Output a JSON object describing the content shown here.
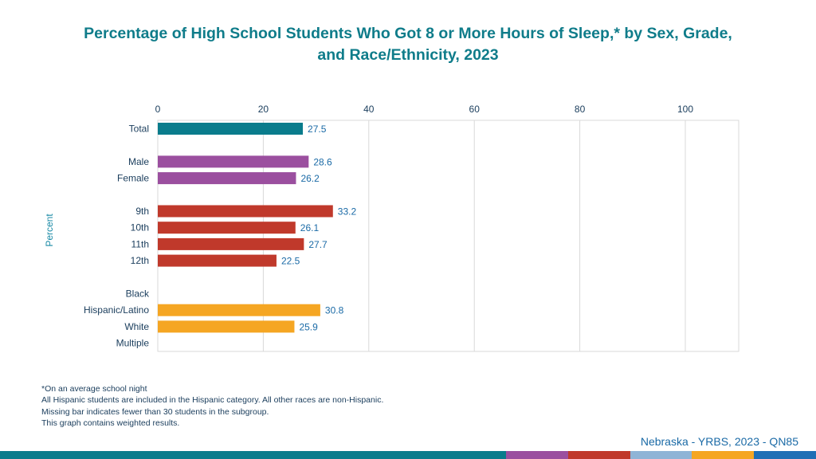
{
  "title_line1": "Percentage of High School Students Who Got 8 or More Hours of Sleep,* by Sex, Grade,",
  "title_line2": "and Race/Ethnicity, 2023",
  "footnotes": [
    "*On an average school night",
    "All Hispanic students are included in the Hispanic category.  All other races are non-Hispanic.",
    "Missing bar indicates fewer than 30 students in the subgroup.",
    "This graph contains weighted results."
  ],
  "source": "Nebraska - YRBS, 2023 - QN85",
  "colors": {
    "title": "#0f7c8a",
    "axis_text": "#1a3d5c",
    "value_label": "#1a6aa6",
    "total": "#0a7c8c",
    "sex": "#9b4f9f",
    "grade": "#c0392b",
    "race": "#f5a623"
  },
  "bottom_band": [
    {
      "color": "#0a7c8c",
      "fraction": 0.62
    },
    {
      "color": "#9b4f9f",
      "fraction": 0.076
    },
    {
      "color": "#c0392b",
      "fraction": 0.076
    },
    {
      "color": "#8fb4d6",
      "fraction": 0.076
    },
    {
      "color": "#f5a623",
      "fraction": 0.076
    },
    {
      "color": "#1f6fb5",
      "fraction": 0.076
    }
  ],
  "chart_data": {
    "type": "bar",
    "orientation": "horizontal",
    "xlim": [
      0,
      110
    ],
    "xticks": [
      "0",
      "20",
      "40",
      "60",
      "80",
      "100"
    ],
    "xtick_values": [
      0,
      20,
      40,
      60,
      80,
      100
    ],
    "ylabel": "Percent",
    "grid": true,
    "categories": [
      "Total",
      "Male",
      "Female",
      "9th",
      "10th",
      "11th",
      "12th",
      "Black",
      "Hispanic/Latino",
      "White",
      "Multiple"
    ],
    "values": [
      27.5,
      28.6,
      26.2,
      33.2,
      26.1,
      27.7,
      22.5,
      null,
      30.8,
      25.9,
      null
    ],
    "value_labels": [
      "27.5",
      "28.6",
      "26.2",
      "33.2",
      "26.1",
      "27.7",
      "22.5",
      "",
      "30.8",
      "25.9",
      ""
    ],
    "groups": [
      "total",
      "sex",
      "sex",
      "grade",
      "grade",
      "grade",
      "grade",
      "race",
      "race",
      "race",
      "race"
    ],
    "row_slots": [
      0,
      2,
      3,
      5,
      6,
      7,
      8,
      10,
      11,
      12,
      13
    ]
  }
}
